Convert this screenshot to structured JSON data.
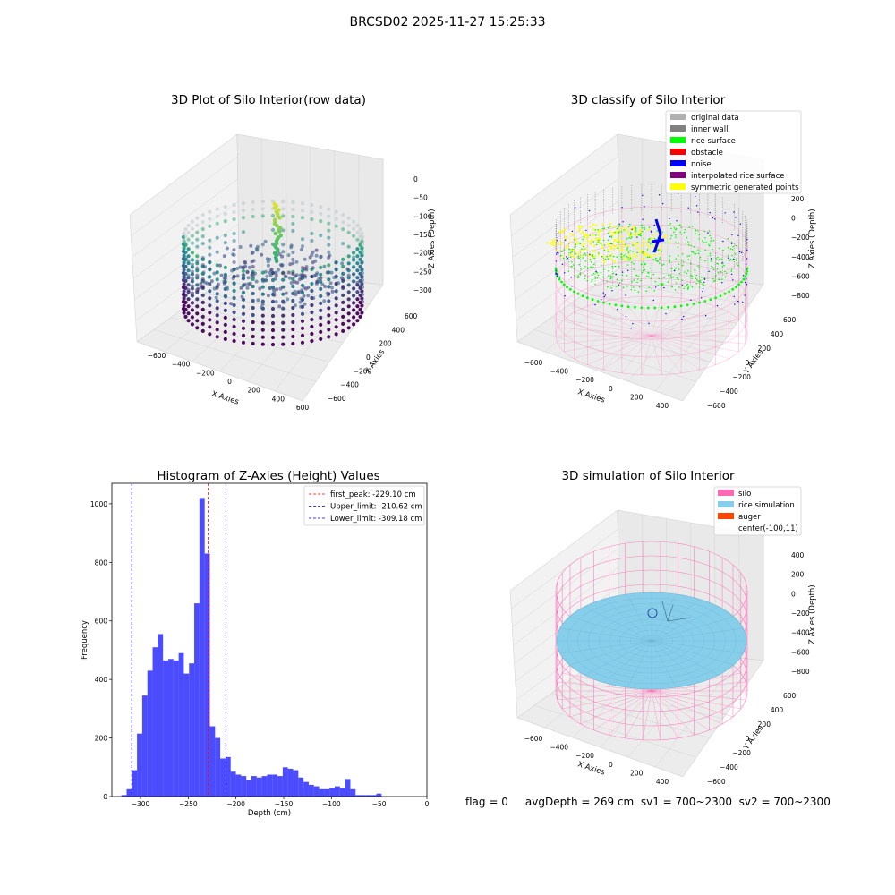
{
  "suptitle": "BRCSD02 2025-11-27 15:25:33",
  "status_line": "flag = 0     avgDepth = 269 cm  sv1 = 700~2300  sv2 = 700~2300",
  "colors": {
    "histogram_bar": "#0000ff",
    "first_peak_line": "#ff0000",
    "limit_line": "#0000cc",
    "silo": "#ff69b4",
    "rice_simulation": "#87ceeb",
    "auger": "#ff4500",
    "original_data": "#b0b0b0",
    "inner_wall": "#808080",
    "rice_surface": "#00ff00",
    "obstacle": "#ff0000",
    "noise": "#0000ff",
    "interpolated_rice_surface": "#800080",
    "symmetric_generated_points": "#ffff00"
  },
  "chart_data": [
    {
      "type": "scatter",
      "dims": "3d",
      "title": "3D Plot of Silo Interior(row data)",
      "xlabel": "X Axies",
      "ylabel": "Y Axies",
      "zlabel": "Z Axies (Depth)",
      "x_ticks": [
        "−600",
        "−400",
        "−200",
        "0",
        "200",
        "400",
        "600"
      ],
      "y_ticks": [
        "−600",
        "−400",
        "−200",
        "0",
        "200",
        "400",
        "600"
      ],
      "z_ticks": [
        "0",
        "−50",
        "−100",
        "−150",
        "−200",
        "−250",
        "−300"
      ],
      "colormap": "viridis"
    },
    {
      "type": "scatter",
      "dims": "3d",
      "title": "3D classify of Silo Interior",
      "xlabel": "X Axies",
      "ylabel": "Y Axies",
      "zlabel": "Z Axies (Depth)",
      "x_ticks": [
        "−600",
        "−400",
        "−200",
        "0",
        "200",
        "400"
      ],
      "y_ticks": [
        "−600",
        "−400",
        "−200",
        "0",
        "200",
        "400",
        "600"
      ],
      "z_ticks": [
        "200",
        "0",
        "−200",
        "−400",
        "−600",
        "−800"
      ],
      "legend_position": "top-right",
      "legend": [
        {
          "label": "original data",
          "color": "#b0b0b0"
        },
        {
          "label": "inner wall",
          "color": "#808080"
        },
        {
          "label": "rice surface",
          "color": "#00ff00"
        },
        {
          "label": "obstacle",
          "color": "#ff0000"
        },
        {
          "label": "noise",
          "color": "#0000ff"
        },
        {
          "label": "interpolated rice surface",
          "color": "#800080"
        },
        {
          "label": "symmetric generated points",
          "color": "#ffff00"
        }
      ]
    },
    {
      "type": "bar",
      "title": "Histogram of Z-Axies (Height) Values",
      "xlabel": "Depth (cm)",
      "ylabel": "Frequency",
      "xlim": [
        -330,
        0
      ],
      "ylim": [
        0,
        1070
      ],
      "x_ticks": [
        -300,
        -250,
        -200,
        -150,
        -100,
        -50,
        0
      ],
      "y_ticks": [
        0,
        200,
        400,
        600,
        800,
        1000
      ],
      "bin_start": -320,
      "bin_width": 5.45,
      "values": [
        5,
        25,
        90,
        215,
        345,
        430,
        510,
        555,
        465,
        470,
        465,
        490,
        420,
        455,
        660,
        1020,
        830,
        240,
        200,
        130,
        135,
        85,
        75,
        70,
        55,
        70,
        65,
        70,
        75,
        75,
        70,
        100,
        95,
        90,
        65,
        50,
        40,
        35,
        25,
        25,
        30,
        35,
        30,
        60,
        25,
        5,
        5,
        5,
        5,
        10
      ],
      "vlines": [
        {
          "x": -229.1,
          "label": "first_peak: -229.10 cm",
          "color": "#ff0000"
        },
        {
          "x": -210.62,
          "label": "Upper_limit: -210.62 cm",
          "color": "#0000cc"
        },
        {
          "x": -309.18,
          "label": "Lower_limit: -309.18 cm",
          "color": "#0000cc"
        }
      ],
      "legend_position": "top-right"
    },
    {
      "type": "surface",
      "dims": "3d",
      "title": "3D simulation of Silo Interior",
      "xlabel": "X Axies",
      "ylabel": "Y Axies",
      "zlabel": "Z Axies (Depth)",
      "x_ticks": [
        "−600",
        "−400",
        "−200",
        "0",
        "200",
        "400"
      ],
      "y_ticks": [
        "−600",
        "−400",
        "−200",
        "0",
        "200",
        "400",
        "600"
      ],
      "z_ticks": [
        "400",
        "200",
        "0",
        "−200",
        "−400",
        "−600",
        "−800"
      ],
      "legend_position": "top-right",
      "legend": [
        {
          "label": "silo",
          "color": "#ff69b4"
        },
        {
          "label": "rice simulation",
          "color": "#87ceeb"
        },
        {
          "label": "auger",
          "color": "#ff4500"
        },
        {
          "label": "center(-100,11)",
          "color": ""
        }
      ]
    }
  ]
}
